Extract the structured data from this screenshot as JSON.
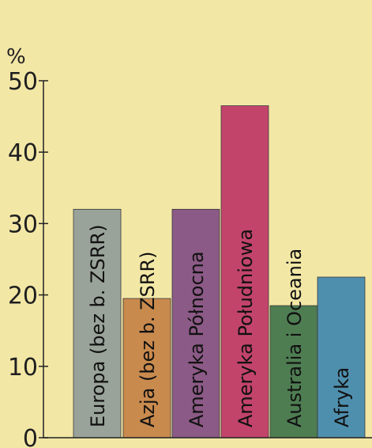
{
  "chart_data": {
    "type": "bar",
    "title": "",
    "xlabel": "",
    "ylabel": "%",
    "ylim": [
      0,
      50
    ],
    "yticks": [
      0,
      10,
      20,
      30,
      40,
      50
    ],
    "grid": false,
    "legend": "none",
    "categories": [
      "Europa (bez b. ZSRR)",
      "Azja (bez b. ZSRR)",
      "Ameryka Północna",
      "Ameryka Południowa",
      "Australia i Oceania",
      "Afryka"
    ],
    "values": [
      32,
      19.5,
      32,
      46.5,
      18.5,
      22.5
    ],
    "colors": [
      "#9aa39a",
      "#c98a4e",
      "#8c5a86",
      "#c2446b",
      "#4e7d52",
      "#4f8fae"
    ]
  }
}
